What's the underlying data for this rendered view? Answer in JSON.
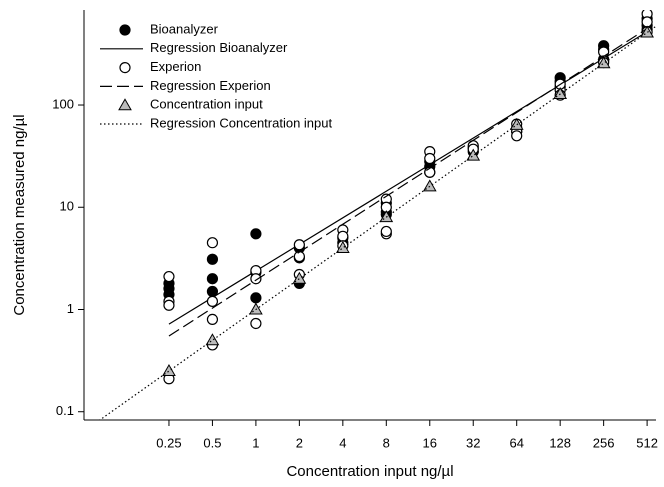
{
  "chart_data": {
    "type": "scatter",
    "x_label": "Concentration input ng/µl",
    "y_label": "Concentration measured ng/µl",
    "xlog": true,
    "ylog": true,
    "xlim": [
      0.0645,
      590
    ],
    "ylim": [
      0.083,
      850
    ],
    "xticks": [
      0.25,
      0.5,
      1,
      2,
      4,
      8,
      16,
      32,
      64,
      128,
      256,
      512
    ],
    "yticks": [
      0.1,
      1,
      10,
      100
    ],
    "legend": "top-left",
    "series": [
      {
        "name": "Bioanalyzer",
        "marker": "filled-circle",
        "color": "#000000",
        "x": [
          0.25,
          0.25,
          0.25,
          0.5,
          0.5,
          0.5,
          1,
          1,
          1,
          2,
          2,
          2,
          4,
          4,
          8,
          8,
          8,
          16,
          16,
          16,
          32,
          32,
          64,
          64,
          128,
          128,
          128,
          256,
          256,
          256,
          512,
          512,
          512
        ],
        "values": [
          1.8,
          1.6,
          1.4,
          3.1,
          2.0,
          1.5,
          5.5,
          1.3,
          2.3,
          1.8,
          3.2,
          4.0,
          5.0,
          4.5,
          11,
          9,
          8.5,
          25,
          22,
          28,
          38,
          35,
          60,
          55,
          185,
          170,
          150,
          380,
          350,
          280,
          700,
          600,
          550
        ]
      },
      {
        "name": "Regression Bioanalyzer",
        "line_style": "solid",
        "color": "#000000",
        "x": [
          0.25,
          512
        ],
        "values": [
          0.72,
          520
        ]
      },
      {
        "name": "Experion",
        "marker": "open-circle",
        "color": "#000000",
        "x": [
          0.25,
          0.25,
          0.25,
          0.25,
          0.5,
          0.5,
          0.5,
          0.5,
          1,
          1,
          1,
          2,
          2,
          2,
          4,
          4,
          4,
          8,
          8,
          8,
          8,
          16,
          16,
          16,
          32,
          32,
          64,
          64,
          64,
          128,
          128,
          128,
          256,
          256,
          256,
          512,
          512,
          512
        ],
        "values": [
          2.1,
          1.2,
          1.1,
          0.21,
          4.5,
          1.2,
          0.8,
          0.45,
          2.4,
          2.0,
          0.73,
          4.3,
          3.3,
          2.2,
          6.0,
          5.2,
          4.2,
          12,
          10,
          5.5,
          5.8,
          35,
          30,
          22,
          40,
          37,
          65,
          55,
          50,
          140,
          125,
          160,
          330,
          270,
          260,
          780,
          650,
          520
        ]
      },
      {
        "name": "Regression Experion",
        "line_style": "dashed",
        "color": "#000000",
        "x": [
          0.25,
          512
        ],
        "values": [
          0.55,
          560
        ]
      },
      {
        "name": "Concentration input",
        "marker": "triangle",
        "color": "#000000",
        "x": [
          0.25,
          0.5,
          1,
          2,
          4,
          8,
          16,
          32,
          64,
          128,
          256,
          512
        ],
        "values": [
          0.25,
          0.5,
          1,
          2,
          4,
          8,
          16,
          32,
          64,
          128,
          256,
          512
        ]
      },
      {
        "name": "Regression Concentration input",
        "line_style": "dotted",
        "color": "#000000",
        "x": [
          0.07,
          590
        ],
        "values": [
          0.07,
          590
        ]
      }
    ]
  }
}
